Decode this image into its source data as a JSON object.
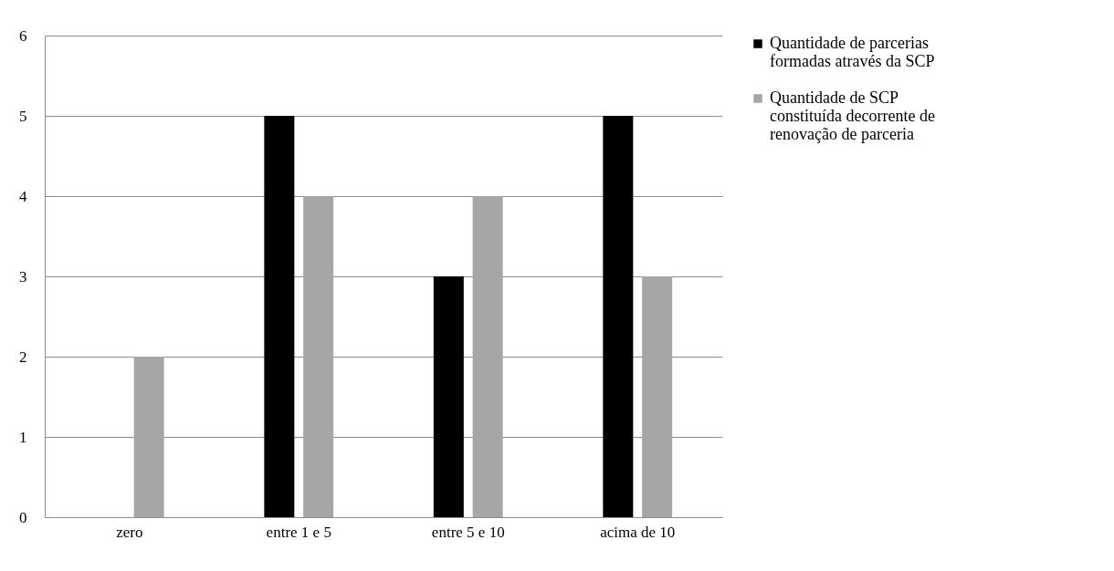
{
  "chart_data": {
    "type": "bar",
    "categories": [
      "zero",
      "entre 1 e 5",
      "entre 5 e 10",
      "acima de 10"
    ],
    "series": [
      {
        "name": "Quantidade de parcerias formadas através da SCP",
        "color": "#000000",
        "values": [
          0,
          5,
          3,
          5
        ]
      },
      {
        "name": "Quantidade de SCP constituída decorrente de renovação de parceria",
        "color": "#a6a6a6",
        "values": [
          2,
          4,
          4,
          3
        ]
      }
    ],
    "ylim": [
      0,
      6
    ],
    "yticks": [
      0,
      1,
      2,
      3,
      4,
      5,
      6
    ],
    "grid": "y",
    "legend": "right"
  }
}
